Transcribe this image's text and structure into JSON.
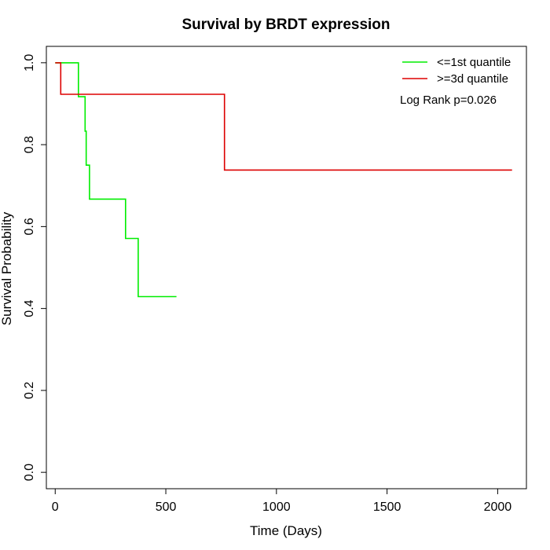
{
  "chart_data": {
    "type": "line",
    "title": "Survival by BRDT expression",
    "xlabel": "Time (Days)",
    "ylabel": "Survival Probability",
    "xlim": [
      -40,
      2130
    ],
    "ylim": [
      -0.04,
      1.04
    ],
    "x_ticks": [
      0,
      500,
      1000,
      1500,
      2000
    ],
    "y_ticks": [
      0.0,
      0.2,
      0.4,
      0.6,
      0.8,
      1.0
    ],
    "x_tick_labels": [
      "0",
      "500",
      "1000",
      "1500",
      "2000"
    ],
    "y_tick_labels": [
      "0.0",
      "0.2",
      "0.4",
      "0.6",
      "0.8",
      "1.0"
    ],
    "grid": false,
    "legend_position": "top-right",
    "annotation": "Log Rank p=0.026",
    "series": [
      {
        "name": "<=1st quantile",
        "color": "#00ee00",
        "step": true,
        "points": [
          [
            0,
            1.0
          ],
          [
            105,
            1.0
          ],
          [
            105,
            0.917
          ],
          [
            135,
            0.917
          ],
          [
            135,
            0.833
          ],
          [
            140,
            0.833
          ],
          [
            140,
            0.75
          ],
          [
            155,
            0.75
          ],
          [
            155,
            0.667
          ],
          [
            318,
            0.667
          ],
          [
            318,
            0.571
          ],
          [
            375,
            0.571
          ],
          [
            375,
            0.429
          ],
          [
            548,
            0.429
          ]
        ]
      },
      {
        "name": ">=3d quantile",
        "color": "#dd0000",
        "step": true,
        "points": [
          [
            0,
            1.0
          ],
          [
            25,
            1.0
          ],
          [
            25,
            0.923
          ],
          [
            765,
            0.923
          ],
          [
            765,
            0.738
          ],
          [
            2065,
            0.738
          ]
        ]
      }
    ]
  }
}
